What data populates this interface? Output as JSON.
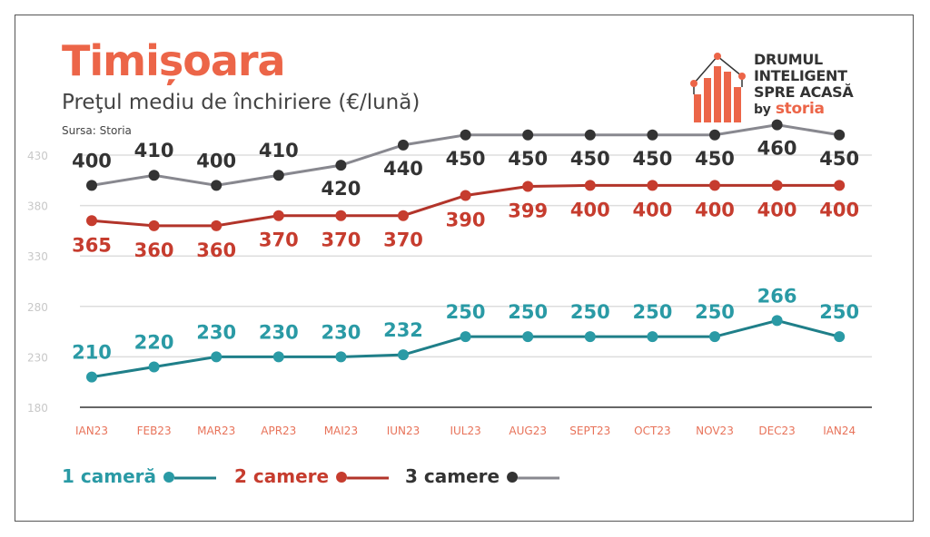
{
  "header": {
    "title": "Timișoara",
    "subtitle": "Preţul mediu de închiriere (€/lună)",
    "source": "Sursa: Storia"
  },
  "logo": {
    "line1": "DRUMUL",
    "line2": "INTELIGENT",
    "line3": "SPRE ACASĂ",
    "by": "by",
    "brand": "storia"
  },
  "chart_data": {
    "type": "line",
    "categories": [
      "IAN23",
      "FEB23",
      "MAR23",
      "APR23",
      "MAI23",
      "IUN23",
      "IUL23",
      "AUG23",
      "SEPT23",
      "OCT23",
      "NOV23",
      "DEC23",
      "IAN24"
    ],
    "ylim": [
      180,
      430
    ],
    "yticks": [
      180,
      230,
      280,
      330,
      380,
      430
    ],
    "grid": true,
    "legend_position": "bottom-left",
    "series": [
      {
        "name": "1 cameră",
        "color": "#2a9aa5",
        "line": "#1f7f89",
        "values": [
          210,
          220,
          230,
          230,
          230,
          232,
          250,
          250,
          250,
          250,
          250,
          266,
          250
        ],
        "label_pos": "above"
      },
      {
        "name": "2 camere",
        "color": "#c63c2e",
        "line": "#b2342a",
        "values": [
          365,
          360,
          360,
          370,
          370,
          370,
          390,
          399,
          400,
          400,
          400,
          400,
          400
        ],
        "label_pos": "below"
      },
      {
        "name": "3 camere",
        "color": "#333333",
        "line": "#88888f",
        "values": [
          400,
          410,
          400,
          410,
          420,
          440,
          450,
          450,
          450,
          450,
          450,
          460,
          450
        ],
        "label_pos": "mixed"
      }
    ]
  }
}
